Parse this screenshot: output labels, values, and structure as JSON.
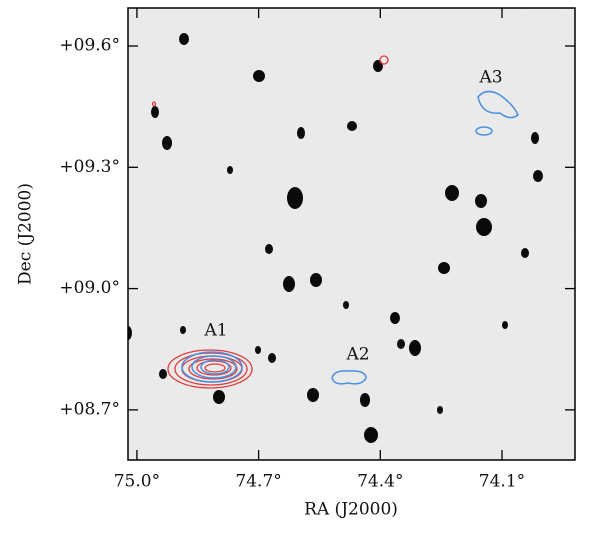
{
  "chart_data": {
    "type": "sky-image",
    "xlabel": "RA (J2000)",
    "ylabel": "Dec (J2000)",
    "xlim": [
      75.022,
      73.92
    ],
    "ylim": [
      8.576,
      9.694
    ],
    "xticks": [
      {
        "value": 75.0,
        "label": "75.0°"
      },
      {
        "value": 74.7,
        "label": "74.7°"
      },
      {
        "value": 74.4,
        "label": "74.4°"
      },
      {
        "value": 74.1,
        "label": "74.1°"
      }
    ],
    "yticks": [
      {
        "value": 8.7,
        "label": "+08.7°"
      },
      {
        "value": 9.0,
        "label": "+09.0°"
      },
      {
        "value": 9.3,
        "label": "+09.3°"
      },
      {
        "value": 9.6,
        "label": "+09.6°"
      }
    ],
    "annotations": [
      "A1",
      "A2",
      "A3"
    ]
  }
}
